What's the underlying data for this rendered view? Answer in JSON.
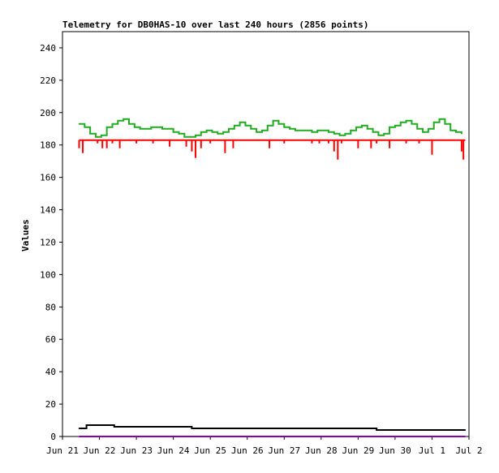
{
  "chart_data": {
    "type": "line",
    "title": "Telemetry for DB0HAS-10 over last 240 hours (2856 points)",
    "xlabel": "",
    "ylabel": "Values",
    "x_range_days": [
      0,
      11
    ],
    "ylim": [
      0,
      250
    ],
    "y_ticks": [
      "0",
      "20",
      "40",
      "60",
      "80",
      "100",
      "120",
      "140",
      "160",
      "180",
      "200",
      "220",
      "240"
    ],
    "x_ticks": [
      "Jun 21",
      "Jun 22",
      "Jun 23",
      "Jun 24",
      "Jun 25",
      "Jun 26",
      "Jun 27",
      "Jun 28",
      "Jun 29",
      "Jun 30",
      "Jul 1",
      "Jul 2"
    ],
    "grid": false,
    "legend": "none",
    "series": [
      {
        "color": "#22aa22",
        "x": [
          0.45,
          0.6,
          0.75,
          0.9,
          1.05,
          1.2,
          1.35,
          1.5,
          1.65,
          1.8,
          1.95,
          2.1,
          2.25,
          2.4,
          2.55,
          2.7,
          2.85,
          3.0,
          3.15,
          3.3,
          3.45,
          3.6,
          3.75,
          3.9,
          4.05,
          4.2,
          4.35,
          4.5,
          4.65,
          4.8,
          4.95,
          5.1,
          5.25,
          5.4,
          5.55,
          5.7,
          5.85,
          6.0,
          6.15,
          6.3,
          6.45,
          6.6,
          6.75,
          6.9,
          7.05,
          7.2,
          7.35,
          7.5,
          7.65,
          7.8,
          7.95,
          8.1,
          8.25,
          8.4,
          8.55,
          8.7,
          8.85,
          9.0,
          9.15,
          9.3,
          9.45,
          9.6,
          9.75,
          9.9,
          10.05,
          10.2,
          10.35,
          10.5,
          10.65,
          10.8
        ],
        "y": [
          193,
          191,
          187,
          185,
          186,
          191,
          193,
          195,
          196,
          193,
          191,
          190,
          190,
          191,
          191,
          190,
          190,
          188,
          187,
          185,
          185,
          186,
          188,
          189,
          188,
          187,
          188,
          190,
          192,
          194,
          192,
          190,
          188,
          189,
          192,
          195,
          193,
          191,
          190,
          189,
          189,
          189,
          188,
          189,
          189,
          188,
          187,
          186,
          187,
          189,
          191,
          192,
          190,
          188,
          186,
          187,
          191,
          192,
          194,
          195,
          193,
          190,
          188,
          190,
          194,
          196,
          193,
          189,
          188,
          187
        ]
      },
      {
        "color": "#ff0000",
        "baseline": 183,
        "x": [
          0.45,
          0.55,
          0.95,
          1.08,
          1.2,
          1.35,
          1.55,
          2.0,
          2.45,
          2.9,
          3.35,
          3.5,
          3.6,
          3.75,
          4.0,
          4.4,
          4.62,
          5.6,
          6.0,
          6.75,
          6.95,
          7.2,
          7.35,
          7.45,
          7.55,
          8.0,
          8.35,
          8.5,
          8.85,
          9.3,
          9.65,
          10.0,
          10.8,
          10.85
        ],
        "y": [
          178,
          175,
          181,
          178,
          178,
          181,
          178,
          181,
          181,
          179,
          179,
          176,
          172,
          178,
          181,
          175,
          178,
          178,
          181,
          181,
          181,
          181,
          176,
          171,
          181,
          178,
          178,
          181,
          178,
          181,
          181,
          174,
          176,
          171
        ]
      },
      {
        "color": "#000000",
        "x": [
          0.45,
          0.55,
          0.65,
          1.0,
          1.4,
          2.0,
          2.5,
          3.0,
          3.5,
          4.0,
          4.5,
          5.0,
          5.5,
          6.0,
          6.5,
          7.0,
          7.5,
          8.0,
          8.5,
          9.0,
          9.5,
          10.0,
          10.5,
          10.9
        ],
        "y": [
          5,
          5,
          7,
          7,
          6,
          6,
          6,
          6,
          5,
          5,
          5,
          5,
          5,
          5,
          5,
          5,
          5,
          5,
          4,
          4,
          4,
          4,
          4,
          4
        ]
      },
      {
        "color": "#8800aa",
        "x": [
          0.45,
          10.9
        ],
        "y": [
          0,
          0
        ]
      }
    ]
  }
}
